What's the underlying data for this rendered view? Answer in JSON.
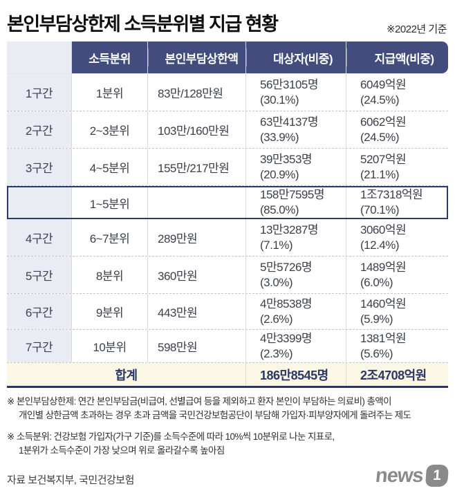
{
  "meta": {
    "title": "본인부담상한제 소득분위별 지급 현황",
    "basis_note": "※2022년 기준",
    "source": "자료 보건복지부, 국민건강보험",
    "logo": {
      "text": "news",
      "badge": "1"
    }
  },
  "colors": {
    "header_bg": "#424d7e",
    "section_col_bg": "#eaecf4",
    "highlight_border": "#2b3a6b",
    "total_bg": "#faf7e4",
    "total_text": "#2c3763",
    "body_text": "#3a3f4b",
    "logo_gray": "#8a8a8a"
  },
  "table": {
    "headers": [
      "",
      "소득분위",
      "본인부담상한액",
      "대상자(비중)",
      "지급액(비중)"
    ],
    "rows": [
      {
        "section": "1구간",
        "decile": "1분위",
        "ceiling": "83만/128만원",
        "recipients": "56만3105명",
        "recipients_pct": "(30.1%)",
        "amount": "6049억원",
        "amount_pct": "(24.5%)"
      },
      {
        "section": "2구간",
        "decile": "2~3분위",
        "ceiling": "103만/160만원",
        "recipients": "63만4137명",
        "recipients_pct": "(33.9%)",
        "amount": "6062억원",
        "amount_pct": "(24.5%)"
      },
      {
        "section": "3구간",
        "decile": "4~5분위",
        "ceiling": "155만/217만원",
        "recipients": "39만353명",
        "recipients_pct": "(20.9%)",
        "amount": "5207억원",
        "amount_pct": "(21.1%)"
      },
      {
        "section": "",
        "decile": "1~5분위",
        "ceiling": "",
        "recipients": "158만7595명",
        "recipients_pct": "(85.0%)",
        "amount": "1조7318억원",
        "amount_pct": "(70.1%)"
      },
      {
        "section": "4구간",
        "decile": "6~7분위",
        "ceiling": "289만원",
        "recipients": "13만3287명",
        "recipients_pct": "(7.1%)",
        "amount": "3060억원",
        "amount_pct": "(12.4%)"
      },
      {
        "section": "5구간",
        "decile": "8분위",
        "ceiling": "360만원",
        "recipients": "5만5726명",
        "recipients_pct": "(3.0%)",
        "amount": "1489억원",
        "amount_pct": "(6.0%)"
      },
      {
        "section": "6구간",
        "decile": "9분위",
        "ceiling": "443만원",
        "recipients": "4만8538명",
        "recipients_pct": "(2.6%)",
        "amount": "1460억원",
        "amount_pct": "(5.9%)"
      },
      {
        "section": "7구간",
        "decile": "10분위",
        "ceiling": "598만원",
        "recipients": "4만3399명",
        "recipients_pct": "(2.3%)",
        "amount": "1381억원",
        "amount_pct": "(5.6%)"
      }
    ],
    "total": {
      "label": "합계",
      "recipients": "186만8545명",
      "amount": "2조4708억원"
    }
  },
  "footnotes": [
    {
      "line1": "※ 본인부담상한제: 연간 본인부담금(비급여, 선별급여 등을 제외하고 환자 본인이 부담하는 의료비) 총액이",
      "line2": "개인별 상한금액 초과하는 경우 초과 금액을 국민건강보험공단이 부담해 가입자·피부양자에게 돌려주는 제도"
    },
    {
      "line1": "※ 소득분위: 건강보험 가입자(가구 기준)를 소득수준에 따라 10%씩 10분위로 나눈 지표로,",
      "line2": "1분위가 소득수준이 가장 낮으며 위로 올라갈수록 높아짐"
    }
  ],
  "chart_data": {
    "type": "table",
    "title": "본인부담상한제 소득분위별 지급 현황 (2022년 기준)",
    "columns": [
      "구간",
      "소득분위",
      "본인부담상한액",
      "대상자(비중)",
      "지급액(비중)"
    ],
    "rows": [
      [
        "1구간",
        "1분위",
        "83만/128만원",
        "56만3105명 (30.1%)",
        "6049억원 (24.5%)"
      ],
      [
        "2구간",
        "2~3분위",
        "103만/160만원",
        "63만4137명 (33.9%)",
        "6062억원 (24.5%)"
      ],
      [
        "3구간",
        "4~5분위",
        "155만/217만원",
        "39만353명 (20.9%)",
        "5207억원 (21.1%)"
      ],
      [
        "",
        "1~5분위",
        "",
        "158만7595명 (85.0%)",
        "1조7318억원 (70.1%)"
      ],
      [
        "4구간",
        "6~7분위",
        "289만원",
        "13만3287명 (7.1%)",
        "3060억원 (12.4%)"
      ],
      [
        "5구간",
        "8분위",
        "360만원",
        "5만5726명 (3.0%)",
        "1489억원 (6.0%)"
      ],
      [
        "6구간",
        "9분위",
        "443만원",
        "4만8538명 (2.6%)",
        "1460억원 (5.9%)"
      ],
      [
        "7구간",
        "10분위",
        "598만원",
        "4만3399명 (2.3%)",
        "1381억원 (5.6%)"
      ],
      [
        "합계",
        "",
        "",
        "186만8545명",
        "2조4708억원"
      ]
    ],
    "source": "보건복지부, 국민건강보험"
  }
}
